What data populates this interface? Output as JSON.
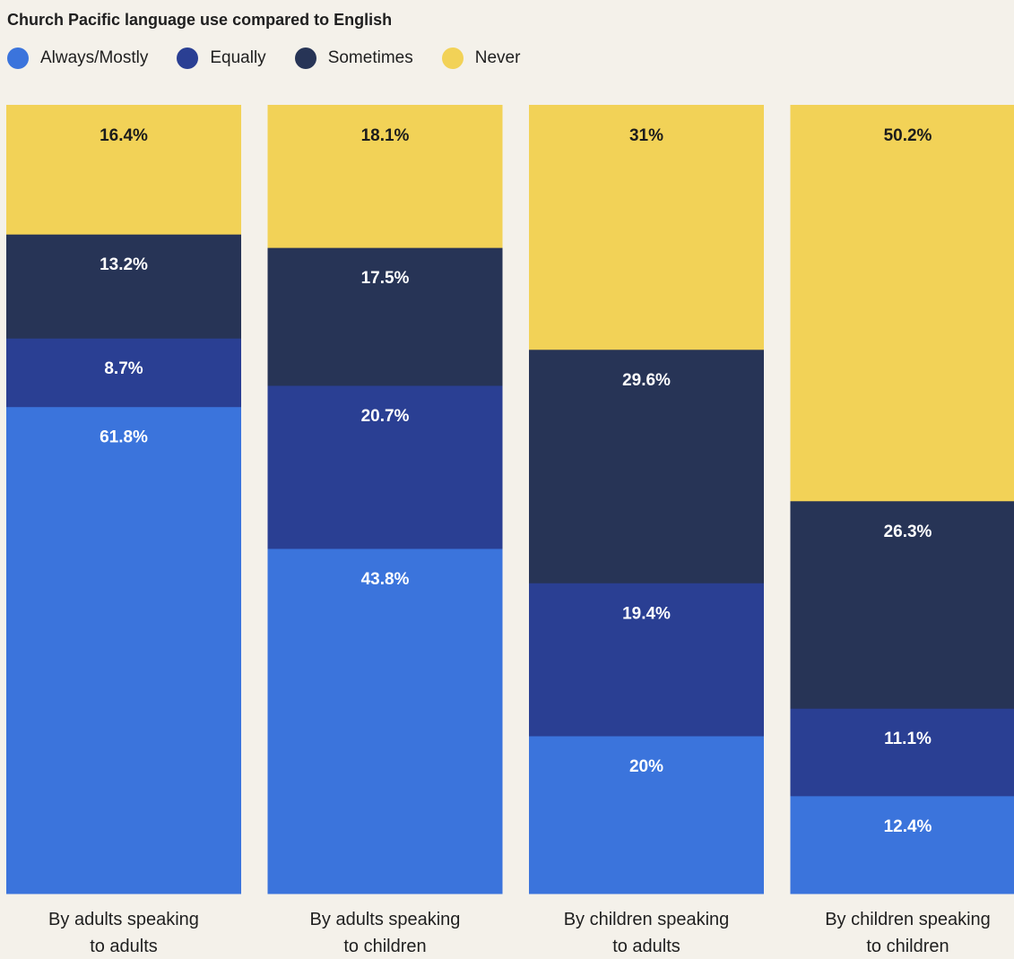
{
  "chart_data": {
    "type": "bar",
    "stacked": true,
    "title": "Church Pacific language use compared to English",
    "categories": [
      [
        "By adults speaking",
        "to adults"
      ],
      [
        "By adults speaking",
        "to children"
      ],
      [
        "By children speaking",
        "to adults"
      ],
      [
        "By children speaking",
        "to children"
      ]
    ],
    "series": [
      {
        "name": "Always/Mostly",
        "color": "#3b74dc",
        "text_color": "#ffffff",
        "values": [
          61.8,
          43.8,
          20,
          12.4
        ],
        "labels": [
          "61.8%",
          "43.8%",
          "20%",
          "12.4%"
        ]
      },
      {
        "name": "Equally",
        "color": "#2a3f93",
        "text_color": "#ffffff",
        "values": [
          8.7,
          20.7,
          19.4,
          11.1
        ],
        "labels": [
          "8.7%",
          "20.7%",
          "19.4%",
          "11.1%"
        ]
      },
      {
        "name": "Sometimes",
        "color": "#273456",
        "text_color": "#ffffff",
        "values": [
          13.2,
          17.5,
          29.6,
          26.3
        ],
        "labels": [
          "13.2%",
          "17.5%",
          "29.6%",
          "26.3%"
        ]
      },
      {
        "name": "Never",
        "color": "#f2d257",
        "text_color": "#1c1c1c",
        "values": [
          16.4,
          18.1,
          31,
          50.2
        ],
        "labels": [
          "16.4%",
          "18.1%",
          "31%",
          "50.2%"
        ]
      }
    ],
    "ylim": [
      0,
      100
    ],
    "legend_position": "top-left",
    "grid": false
  }
}
